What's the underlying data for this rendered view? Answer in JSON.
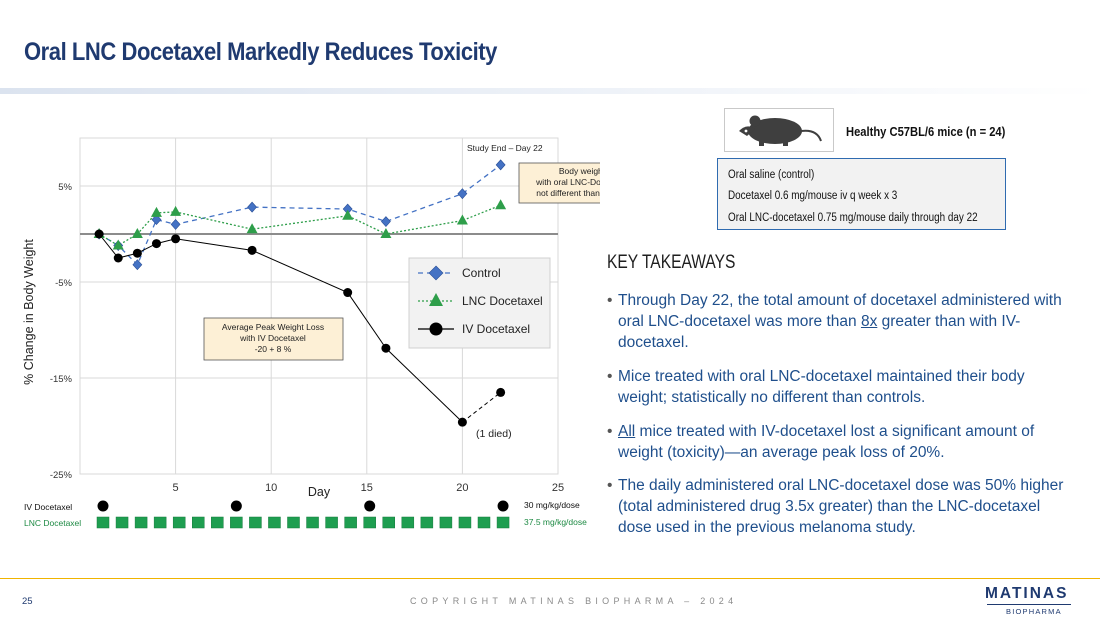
{
  "slide": {
    "title": "Oral LNC Docetaxel Markedly Reduces Toxicity",
    "page_number": "25",
    "copyright": "COPYRIGHT MATINAS BIOPHARMA – 2024",
    "logo": {
      "name": "MATINAS",
      "sub": "BIOPHARMA"
    }
  },
  "study": {
    "mouse_caption": "Healthy C57BL/6 mice (n = 24)",
    "regimens": [
      "Oral saline (control)",
      "Docetaxel 0.6 mg/mouse iv q week x 3",
      "Oral LNC-docetaxel  0.75 mg/mouse daily through day 22"
    ]
  },
  "takeaways": {
    "heading": "KEY TAKEAWAYS",
    "bullets": [
      {
        "pre": "Through Day 22, the total amount of docetaxel administered with oral LNC-docetaxel was more than ",
        "u": "8x",
        "post": " greater than with IV-docetaxel."
      },
      {
        "pre": "Mice treated with oral LNC-docetaxel maintained their body weight; statistically no different than controls.",
        "u": "",
        "post": ""
      },
      {
        "pre": "",
        "u": "All",
        "post": " mice treated with IV-docetaxel lost a significant amount of weight (toxicity)—an average peak loss of 20%."
      },
      {
        "pre": "The daily administered oral LNC-docetaxel dose was 50% higher (total administered drug 3.5x greater) than the LNC-docetaxel dose used in the previous melanoma study.",
        "u": "",
        "post": ""
      }
    ]
  },
  "chart_data": {
    "type": "line",
    "xlabel": "Day",
    "ylabel": "% Change in Body Weight",
    "xlim": [
      0,
      25
    ],
    "ylim": [
      -25,
      10
    ],
    "xticks": [
      5,
      10,
      15,
      20,
      25
    ],
    "yticks": [
      5,
      -5,
      -15,
      -25
    ],
    "ytick_labels": [
      "5%",
      "-5%",
      "-15%",
      "-25%"
    ],
    "grid": true,
    "legend_position": "right",
    "series": [
      {
        "name": "Control",
        "color": "#4472c4",
        "marker": "diamond",
        "style": "dashed",
        "x": [
          1,
          2,
          3,
          4,
          5,
          9,
          14,
          16,
          20,
          22
        ],
        "y": [
          0,
          -1.2,
          -3.2,
          1.5,
          1.0,
          2.8,
          2.6,
          1.3,
          4.2,
          7.2
        ]
      },
      {
        "name": "LNC Docetaxel",
        "color": "#2e9e4a",
        "marker": "triangle",
        "style": "dotted",
        "x": [
          1,
          2,
          3,
          4,
          5,
          9,
          14,
          16,
          20,
          22
        ],
        "y": [
          0,
          -1.2,
          0,
          2.2,
          2.3,
          0.5,
          1.9,
          0,
          1.4,
          3.0
        ]
      },
      {
        "name": "IV Docetaxel",
        "color": "#000000",
        "marker": "circle",
        "style": "solid",
        "x": [
          1,
          2,
          3,
          4,
          5,
          9,
          14,
          16,
          20,
          22
        ],
        "y": [
          0,
          -2.5,
          -2.0,
          -1.0,
          -0.5,
          -1.7,
          -6.1,
          -11.9,
          -19.6,
          -16.5
        ]
      }
    ],
    "annotations": {
      "study_end": "Study End – Day 22",
      "body_weight": [
        "Body weight",
        "with oral LNC-Docetaxel",
        "not different than control"
      ],
      "peak_loss": [
        "Average Peak Weight Loss",
        "with IV Docetaxel",
        "-20 + 8 %"
      ],
      "died": "(1 died)"
    },
    "dosing": {
      "iv": {
        "label": "IV Docetaxel",
        "dose": "30 mg/kg/dose",
        "days": [
          1,
          8,
          15,
          22
        ],
        "color": "#000000"
      },
      "lnc": {
        "label": "LNC Docetaxel",
        "dose": "37.5 mg/kg/dose",
        "days": [
          1,
          2,
          3,
          4,
          5,
          6,
          7,
          8,
          9,
          10,
          11,
          12,
          13,
          14,
          15,
          16,
          17,
          18,
          19,
          20,
          21,
          22
        ],
        "color": "#1e9e50"
      }
    }
  }
}
